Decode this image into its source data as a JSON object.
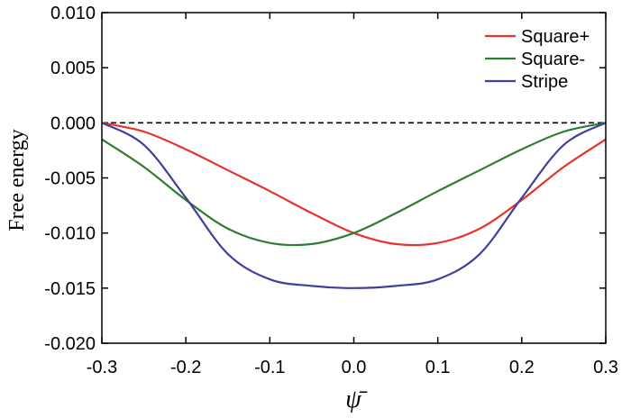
{
  "chart_data": {
    "type": "line",
    "xlabel": "ψ̄",
    "ylabel": "Free energy",
    "xlim": [
      -0.3,
      0.3
    ],
    "ylim": [
      -0.02,
      0.01
    ],
    "x_ticks": [
      "-0.3",
      "-0.2",
      "-0.1",
      "0.0",
      "0.1",
      "0.2",
      "0.3"
    ],
    "y_ticks": [
      "0.010",
      "0.005",
      "0.000",
      "-0.005",
      "-0.010",
      "-0.015",
      "-0.020"
    ],
    "grid": false,
    "legend_position": "top-right",
    "reference_line": {
      "y": 0.0,
      "style": "dashed",
      "color": "#000000"
    },
    "x": [
      -0.3,
      -0.25,
      -0.2,
      -0.15,
      -0.1,
      -0.05,
      0.0,
      0.05,
      0.1,
      0.15,
      0.2,
      0.25,
      0.3
    ],
    "series": [
      {
        "name": "Square+",
        "color": "#e8322a",
        "values": [
          0.0,
          -0.0008,
          -0.0024,
          -0.0043,
          -0.0062,
          -0.0082,
          -0.01,
          -0.011,
          -0.0109,
          -0.0096,
          -0.007,
          -0.004,
          -0.0015
        ]
      },
      {
        "name": "Square-",
        "color": "#2e7d32",
        "values": [
          -0.0015,
          -0.004,
          -0.007,
          -0.0096,
          -0.0109,
          -0.011,
          -0.01,
          -0.0082,
          -0.0062,
          -0.0043,
          -0.0024,
          -0.0008,
          0.0
        ]
      },
      {
        "name": "Stripe",
        "color": "#3f3f9f",
        "values": [
          0.0,
          -0.002,
          -0.0068,
          -0.0119,
          -0.0142,
          -0.0148,
          -0.015,
          -0.0148,
          -0.0142,
          -0.0119,
          -0.0068,
          -0.002,
          0.0
        ]
      }
    ]
  }
}
